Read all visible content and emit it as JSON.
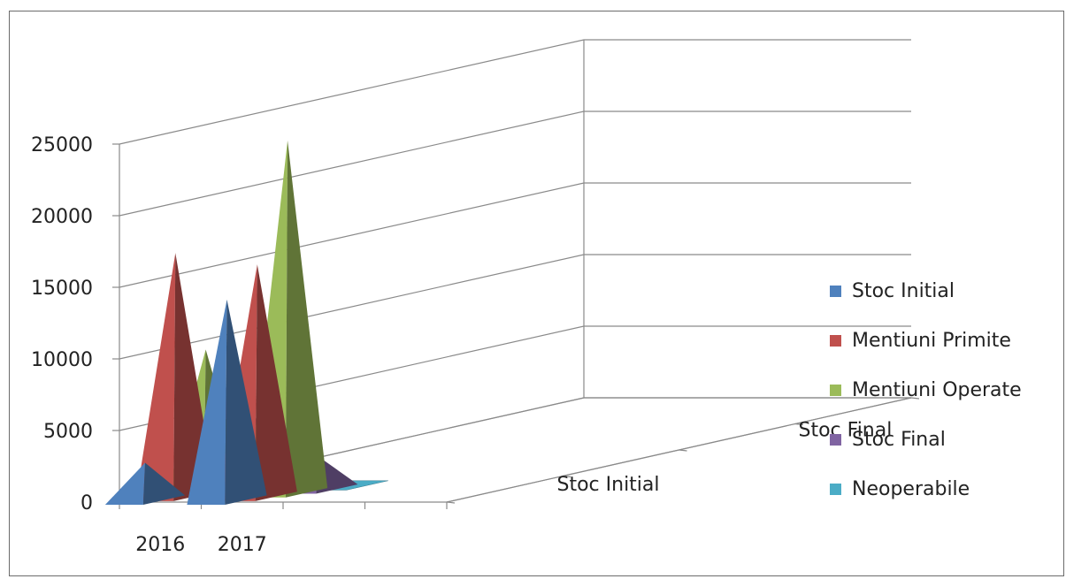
{
  "chart_data": {
    "type": "bar",
    "style": "3d-pyramid",
    "categories": [
      "2016",
      "2017"
    ],
    "series": [
      {
        "name": "Stoc Initial",
        "color": "#4f81bd",
        "values": [
          2600,
          14000
        ]
      },
      {
        "name": "Mentiuni Primite",
        "color": "#c0504d",
        "values": [
          17000,
          16200
        ]
      },
      {
        "name": "Mentiuni Operate",
        "color": "#9bbb59",
        "values": [
          10000,
          24600
        ]
      },
      {
        "name": "Stoc Final",
        "color": "#8064a2",
        "values": [
          9500,
          2300
        ]
      },
      {
        "name": "Neoperabile",
        "color": "#4bacc6",
        "values": [
          0,
          150
        ]
      }
    ],
    "depth_axis_labels": [
      "Stoc Initial",
      "Stoc Final"
    ],
    "yticks": [
      "0",
      "5000",
      "10000",
      "15000",
      "20000",
      "25000"
    ],
    "ylim": [
      0,
      25000
    ],
    "grid": true,
    "legend_position": "right"
  }
}
